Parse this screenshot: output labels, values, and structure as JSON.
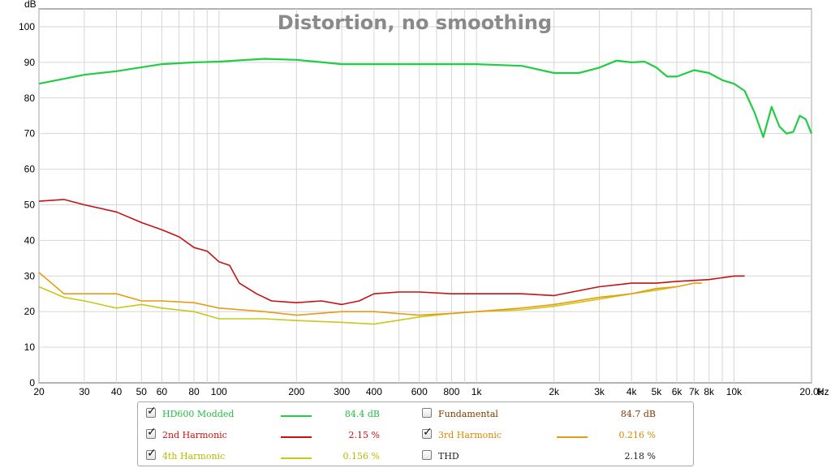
{
  "chart_data": {
    "type": "line",
    "title": "Distortion, no smoothing",
    "ylabel": "dB",
    "xunit": "Hz",
    "xscale": "log",
    "xlim": [
      20,
      20000
    ],
    "ylim": [
      0,
      105
    ],
    "y_ticks": [
      0,
      10,
      20,
      30,
      40,
      50,
      60,
      70,
      80,
      90,
      100
    ],
    "y_tick_labels": [
      "0",
      "10",
      "20",
      "30",
      "40",
      "50",
      "60",
      "70",
      "80",
      "90",
      "100"
    ],
    "x_ticks": [
      20,
      30,
      40,
      50,
      60,
      80,
      100,
      200,
      300,
      400,
      600,
      800,
      1000,
      2000,
      3000,
      4000,
      5000,
      6000,
      7000,
      8000,
      10000,
      20000
    ],
    "x_tick_labels": [
      "20",
      "30",
      "40",
      "50",
      "60",
      "80",
      "100",
      "200",
      "300",
      "400",
      "600",
      "800",
      "1k",
      "2k",
      "3k",
      "4k",
      "5k",
      "6k",
      "7k",
      "8k",
      "10k",
      "20.0k"
    ],
    "grid": true,
    "series": [
      {
        "name": "HD600 Modded",
        "color": "#22cc44",
        "x": [
          20,
          30,
          40,
          60,
          80,
          100,
          150,
          200,
          300,
          400,
          600,
          800,
          1000,
          1500,
          2000,
          2500,
          3000,
          3500,
          4000,
          4500,
          5000,
          5500,
          6000,
          7000,
          8000,
          9000,
          10000,
          11000,
          12000,
          13000,
          14000,
          15000,
          16000,
          17000,
          18000,
          19000,
          20000
        ],
        "values": [
          84,
          86.5,
          87.5,
          89.5,
          90,
          90.2,
          91,
          90.7,
          89.5,
          89.5,
          89.5,
          89.5,
          89.5,
          89,
          87,
          87,
          88.5,
          90.5,
          90,
          90.2,
          88.5,
          86,
          86,
          87.8,
          87,
          85,
          84,
          82,
          76,
          69,
          77.5,
          72,
          70,
          70.5,
          75,
          74,
          70
        ]
      },
      {
        "name": "2nd Harmonic",
        "color": "#c41212",
        "x": [
          20,
          25,
          30,
          40,
          50,
          60,
          70,
          80,
          90,
          100,
          110,
          120,
          140,
          160,
          200,
          250,
          300,
          350,
          400,
          500,
          600,
          800,
          1000,
          1500,
          2000,
          3000,
          4000,
          5000,
          6000,
          8000,
          10000,
          11000
        ],
        "values": [
          51,
          51.5,
          50,
          48,
          45,
          43,
          41,
          38,
          37,
          34,
          33,
          28,
          25,
          23,
          22.5,
          23,
          22,
          23,
          25,
          25.5,
          25.5,
          25,
          25,
          25,
          24.5,
          27,
          28,
          28,
          28.5,
          29,
          30,
          30
        ]
      },
      {
        "name": "3rd Harmonic",
        "color": "#e89a10",
        "x": [
          20,
          25,
          30,
          40,
          50,
          60,
          80,
          100,
          150,
          200,
          300,
          400,
          600,
          800,
          1000,
          1500,
          2000,
          3000,
          4000,
          5000,
          6000,
          7000,
          7500
        ],
        "values": [
          31,
          25,
          25,
          25,
          23,
          23,
          22.5,
          21,
          20,
          19,
          20,
          20,
          19,
          19.5,
          20,
          21,
          22,
          24,
          25,
          26.5,
          27,
          28,
          28
        ]
      },
      {
        "name": "4th Harmonic",
        "color": "#c8c818",
        "x": [
          20,
          25,
          30,
          40,
          50,
          60,
          80,
          100,
          150,
          200,
          300,
          400,
          600,
          800,
          1000,
          1500,
          2000,
          3000,
          4000,
          5000,
          6000
        ],
        "values": [
          27,
          24,
          23,
          21,
          22,
          21,
          20,
          18,
          18,
          17.5,
          17,
          16.5,
          18.5,
          19.5,
          20,
          20.5,
          21.5,
          23.5,
          25,
          26,
          27
        ]
      }
    ]
  },
  "legend": {
    "items": [
      {
        "name": "HD600 Modded",
        "value": "84.4 dB",
        "checked": true,
        "color": "#22bb44",
        "swatch": "#22cc44"
      },
      {
        "name": "Fundamental",
        "value": "84.7 dB",
        "checked": false,
        "color": "#7a3a00",
        "swatch": ""
      },
      {
        "name": "2nd Harmonic",
        "value": "2.15 %",
        "checked": true,
        "color": "#c41212",
        "swatch": "#c41212"
      },
      {
        "name": "3rd Harmonic",
        "value": "0.216 %",
        "checked": true,
        "color": "#d08a00",
        "swatch": "#e89a10"
      },
      {
        "name": "4th Harmonic",
        "value": "0.156 %",
        "checked": true,
        "color": "#b8b800",
        "swatch": "#c8c818"
      },
      {
        "name": "THD",
        "value": "2.18 %",
        "checked": false,
        "color": "#222222",
        "swatch": ""
      }
    ]
  }
}
